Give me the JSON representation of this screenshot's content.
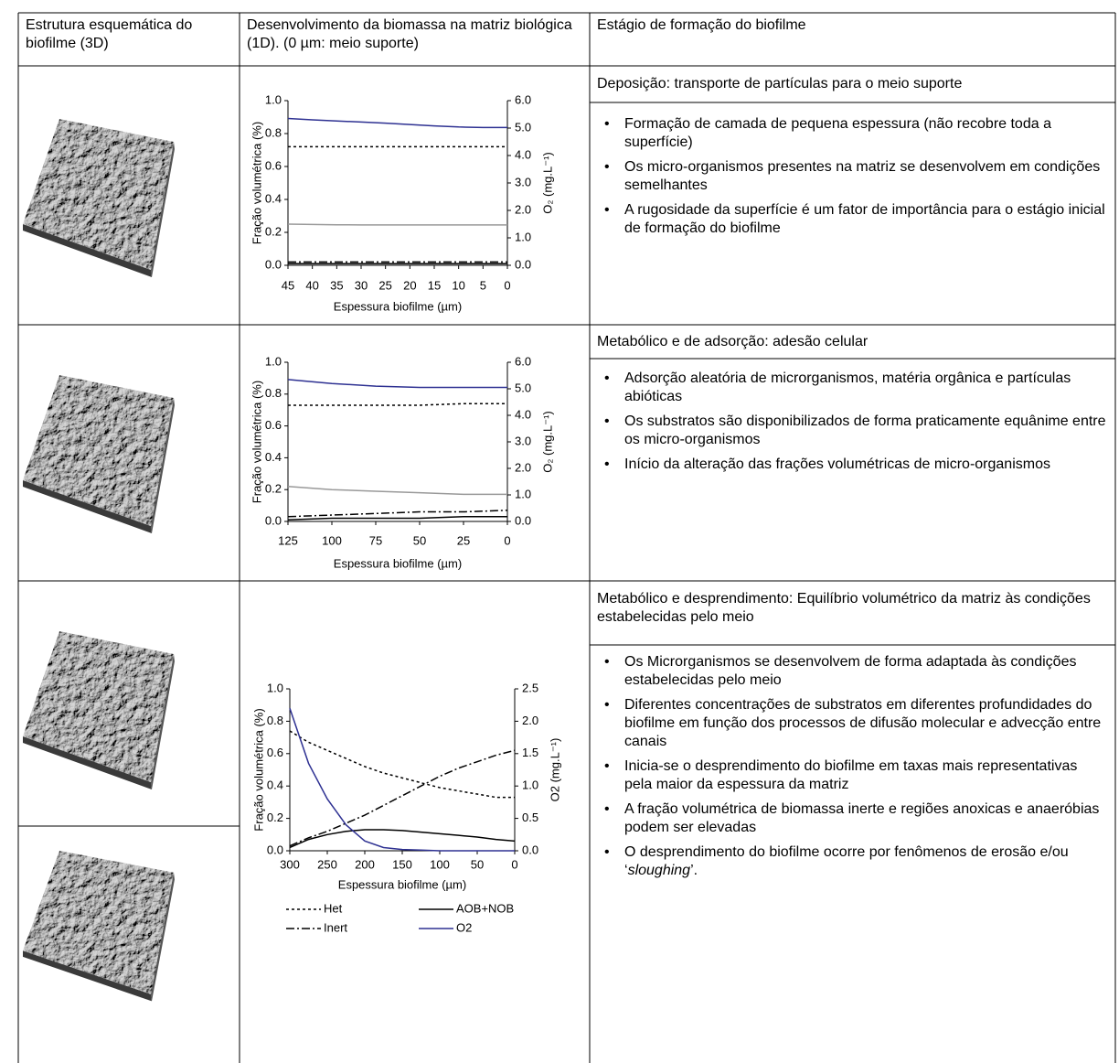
{
  "header": [
    "Estrutura esquemática do biofilme (3D)",
    "Desenvolvimento da biomassa na matriz biológica (1D). (0 µm: meio suporte)",
    "Estágio de formação do biofilme"
  ],
  "rows": [
    {
      "stage": "Deposição: transporte de partículas para o meio suporte",
      "bullets": [
        "Formação de camada de pequena espessura (não recobre toda a superfície)",
        "Os micro-organismos presentes na matriz se desenvolvem em condições semelhantes",
        "A rugosidade da superfície é um fator de importância para o estágio inicial de formação do biofilme"
      ],
      "chart_data": {
        "type": "line",
        "xlabel": "Espessura biofilme (µm)",
        "ylabel": "Fração volumétrica (%)",
        "y2label": "O₂ (mg.L⁻¹)",
        "x": [
          45,
          40,
          35,
          30,
          25,
          20,
          15,
          10,
          5,
          0
        ],
        "xlim": [
          45,
          0
        ],
        "xticks": [
          45,
          40,
          35,
          30,
          25,
          20,
          15,
          10,
          5,
          0
        ],
        "ylim": [
          0,
          1
        ],
        "yticks": [
          {
            "value": 0,
            "label": "0.0"
          },
          0.2,
          0.4,
          0.6,
          0.8,
          {
            "value": 1,
            "label": "1.0"
          }
        ],
        "y2lim": [
          0,
          6
        ],
        "y2ticks": [
          {
            "value": 0,
            "label": "0.0"
          },
          {
            "value": 1,
            "label": "1.0"
          },
          {
            "value": 2,
            "label": "2.0"
          },
          {
            "value": 3,
            "label": "3.0"
          },
          {
            "value": 4,
            "label": "4.0"
          },
          {
            "value": 5,
            "label": "5.0"
          },
          {
            "value": 6,
            "label": "6.0"
          }
        ],
        "series": [
          {
            "color": "#000000",
            "style": "dotted",
            "values": [
              0.72,
              0.72,
              0.72,
              0.72,
              0.72,
              0.72,
              0.72,
              0.72,
              0.72,
              0.72
            ]
          },
          {
            "color": "#999999",
            "style": "solid",
            "values": [
              0.25,
              0.248,
              0.246,
              0.245,
              0.245,
              0.245,
              0.245,
              0.245,
              0.245,
              0.245
            ]
          },
          {
            "color": "#000000",
            "style": "dashdot",
            "values": [
              0.02,
              0.02,
              0.02,
              0.02,
              0.02,
              0.02,
              0.02,
              0.02,
              0.02,
              0.02
            ]
          },
          {
            "color": "#000000",
            "style": "solid",
            "values": [
              0.01,
              0.01,
              0.01,
              0.01,
              0.01,
              0.01,
              0.01,
              0.01,
              0.01,
              0.01
            ]
          },
          {
            "color": "#2e3192",
            "style": "solid",
            "axis": "y2",
            "values": [
              5.35,
              5.3,
              5.26,
              5.22,
              5.18,
              5.13,
              5.08,
              5.04,
              5.02,
              5.02
            ]
          }
        ]
      }
    },
    {
      "stage": "Metabólico e de adsorção: adesão celular",
      "bullets": [
        "Adsorção aleatória de microrganismos, matéria orgânica e partículas abióticas",
        "Os substratos são disponibilizados de forma praticamente equânime entre os micro-organismos",
        "Início da alteração das frações volumétricas de micro-organismos"
      ],
      "chart_data": {
        "type": "line",
        "xlabel": "Espessura biofilme (µm)",
        "ylabel": "Fração volumétrica (%)",
        "y2label": "O₂ (mg.L⁻¹)",
        "x": [
          125,
          100,
          75,
          50,
          25,
          0
        ],
        "xlim": [
          125,
          0
        ],
        "xticks": [
          125,
          100,
          75,
          50,
          25,
          0
        ],
        "ylim": [
          0,
          1
        ],
        "yticks": [
          {
            "value": 0,
            "label": "0.0"
          },
          0.2,
          0.4,
          0.6,
          0.8,
          {
            "value": 1,
            "label": "1.0"
          }
        ],
        "y2lim": [
          0,
          6
        ],
        "y2ticks": [
          {
            "value": 0,
            "label": "0.0"
          },
          {
            "value": 1,
            "label": "1.0"
          },
          {
            "value": 2,
            "label": "2.0"
          },
          {
            "value": 3,
            "label": "3.0"
          },
          {
            "value": 4,
            "label": "4.0"
          },
          {
            "value": 5,
            "label": "5.0"
          },
          {
            "value": 6,
            "label": "6.0"
          }
        ],
        "series": [
          {
            "color": "#000000",
            "style": "dotted",
            "values": [
              0.73,
              0.73,
              0.73,
              0.73,
              0.74,
              0.74
            ]
          },
          {
            "color": "#999999",
            "style": "solid",
            "values": [
              0.22,
              0.2,
              0.19,
              0.18,
              0.17,
              0.17
            ]
          },
          {
            "color": "#000000",
            "style": "dashdot",
            "values": [
              0.03,
              0.04,
              0.05,
              0.06,
              0.06,
              0.07
            ]
          },
          {
            "color": "#000000",
            "style": "solid",
            "values": [
              0.01,
              0.02,
              0.02,
              0.02,
              0.03,
              0.03
            ]
          },
          {
            "color": "#2e3192",
            "style": "solid",
            "axis": "y2",
            "values": [
              5.35,
              5.2,
              5.1,
              5.05,
              5.05,
              5.05
            ]
          }
        ]
      }
    },
    {
      "stage": "Metabólico e desprendimento: Equilíbrio volumétrico da matriz às condições estabelecidas pelo meio",
      "bullets": [
        "Os Microrganismos se desenvolvem de forma adaptada às condições estabelecidas pelo meio",
        "Diferentes concentrações de substratos em diferentes profundidades do biofilme em função dos processos de difusão molecular e advecção entre canais",
        "Inicia-se o desprendimento do biofilme em taxas mais representativas pela maior da espessura da matriz",
        "A fração volumétrica de biomassa inerte e regiões anoxicas e anaeróbias podem ser elevadas",
        [
          "O desprendimento do biofilme ocorre por fenômenos de erosão e/ou ‘",
          "sloughing",
          "’."
        ]
      ],
      "chart_data": {
        "type": "line",
        "xlabel": "Espessura biofilme (µm)",
        "ylabel": "Fração volumétrica (%)",
        "y2label": "O2 (mg.L⁻¹)",
        "legend": "bottom",
        "x": [
          300,
          275,
          250,
          225,
          200,
          175,
          150,
          125,
          100,
          75,
          50,
          25,
          0
        ],
        "xlim": [
          300,
          0
        ],
        "xticks": [
          300,
          250,
          200,
          150,
          100,
          50,
          0
        ],
        "ylim": [
          0,
          1
        ],
        "yticks": [
          {
            "value": 0,
            "label": "0.0"
          },
          0.2,
          0.4,
          0.6,
          0.8,
          {
            "value": 1,
            "label": "1.0"
          }
        ],
        "y2lim": [
          0,
          2.5
        ],
        "y2ticks": [
          {
            "value": 0,
            "label": "0.0"
          },
          0.5,
          {
            "value": 1,
            "label": "1.0"
          },
          1.5,
          {
            "value": 2,
            "label": "2.0"
          },
          2.5
        ],
        "series": [
          {
            "name": "Het",
            "color": "#000000",
            "style": "dotted",
            "values": [
              0.74,
              0.67,
              0.62,
              0.57,
              0.52,
              0.48,
              0.45,
              0.42,
              0.39,
              0.37,
              0.35,
              0.33,
              0.33
            ]
          },
          {
            "name": "AOB+NOB",
            "color": "#000000",
            "style": "solid",
            "values": [
              0.02,
              0.07,
              0.1,
              0.12,
              0.13,
              0.13,
              0.125,
              0.115,
              0.105,
              0.095,
              0.085,
              0.07,
              0.06
            ]
          },
          {
            "name": "Inert",
            "color": "#000000",
            "style": "dashdot",
            "values": [
              0.03,
              0.08,
              0.12,
              0.17,
              0.22,
              0.28,
              0.34,
              0.4,
              0.46,
              0.51,
              0.55,
              0.59,
              0.62
            ]
          },
          {
            "name": "O2",
            "color": "#2e3192",
            "style": "solid",
            "axis": "y2",
            "values": [
              2.2,
              1.35,
              0.8,
              0.4,
              0.15,
              0.05,
              0.02,
              0.01,
              0,
              0,
              0,
              0,
              0
            ]
          }
        ]
      }
    }
  ]
}
